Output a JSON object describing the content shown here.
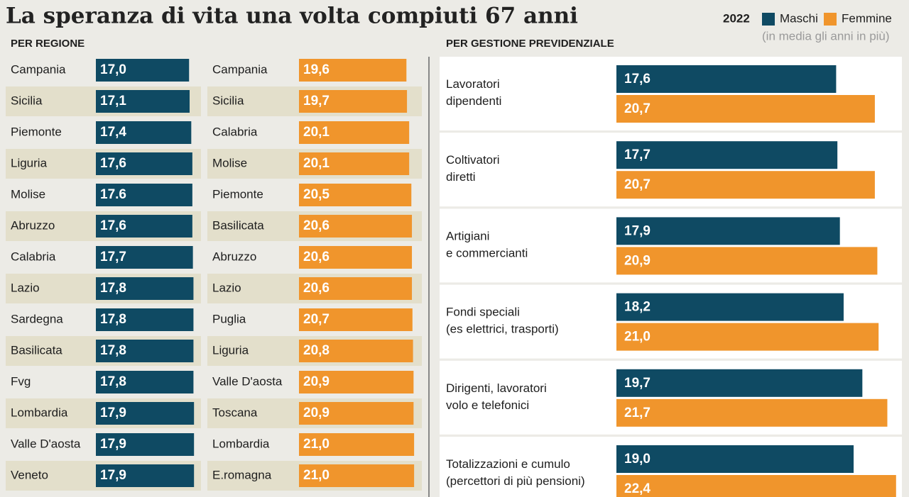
{
  "title": "La speranza di vita una volta compiuti 67 anni",
  "legend": {
    "year": "2022",
    "note": "(in media gli anni in più)"
  },
  "chart_data": [
    {
      "type": "ranked-bar",
      "title": "PER REGIONE",
      "series": [
        {
          "color": "#0f4a63",
          "categories": [
            "Campania",
            "Sicilia",
            "Piemonte",
            "Liguria",
            "Molise",
            "Abruzzo",
            "Calabria",
            "Lazio",
            "Sardegna",
            "Basilicata",
            "Fvg",
            "Lombardia",
            "Valle D'aosta",
            "Veneto"
          ],
          "values": [
            17.0,
            17.1,
            17.4,
            17.6,
            17.6,
            17.6,
            17.7,
            17.8,
            17.8,
            17.8,
            17.8,
            17.9,
            17.9,
            17.9
          ],
          "value_labels": [
            "17,0",
            "17,1",
            "17,4",
            "17,6",
            "17.6",
            "17,6",
            "17,7",
            "17,8",
            "17,8",
            "17,8",
            "17,8",
            "17,9",
            "17,9",
            "17,9"
          ]
        },
        {
          "color": "#f0952c",
          "categories": [
            "Campania",
            "Sicilia",
            "Calabria",
            "Molise",
            "Piemonte",
            "Basilicata",
            "Abruzzo",
            "Lazio",
            "Puglia",
            "Liguria",
            "Valle D'aosta",
            "Toscana",
            "Lombardia",
            "E.romagna"
          ],
          "values": [
            19.6,
            19.7,
            20.1,
            20.1,
            20.5,
            20.6,
            20.6,
            20.6,
            20.7,
            20.8,
            20.9,
            20.9,
            21.0,
            21.0
          ],
          "value_labels": [
            "19,6",
            "19,7",
            "20,1",
            "20,1",
            "20,5",
            "20,6",
            "20,6",
            "20,6",
            "20,7",
            "20,8",
            "20,9",
            "20,9",
            "21,0",
            "21,0"
          ]
        }
      ]
    },
    {
      "type": "grouped-bar",
      "title": "PER GESTIONE PREVIDENZIALE",
      "categories": [
        "Lavoratori\ndipendenti",
        "Coltivatori\ndiretti",
        "Artigiani\ne commercianti",
        "Fondi speciali\n(es elettrici, trasporti)",
        "Dirigenti, lavoratori\nvolo e telefonici",
        "Totalizzazioni e cumulo\n(percettori di più pensioni)"
      ],
      "series": [
        {
          "name": "Maschi",
          "color": "#0f4a63",
          "values": [
            17.6,
            17.7,
            17.9,
            18.2,
            19.7,
            19.0
          ],
          "value_labels": [
            "17,6",
            "17,7",
            "17,9",
            "18,2",
            "19,7",
            "19,0"
          ]
        },
        {
          "name": "Femmine",
          "color": "#f0952c",
          "values": [
            20.7,
            20.7,
            20.9,
            21.0,
            21.7,
            22.4
          ],
          "value_labels": [
            "20,7",
            "20,7",
            "20,9",
            "21,0",
            "21,7",
            "22,4"
          ]
        }
      ]
    }
  ]
}
